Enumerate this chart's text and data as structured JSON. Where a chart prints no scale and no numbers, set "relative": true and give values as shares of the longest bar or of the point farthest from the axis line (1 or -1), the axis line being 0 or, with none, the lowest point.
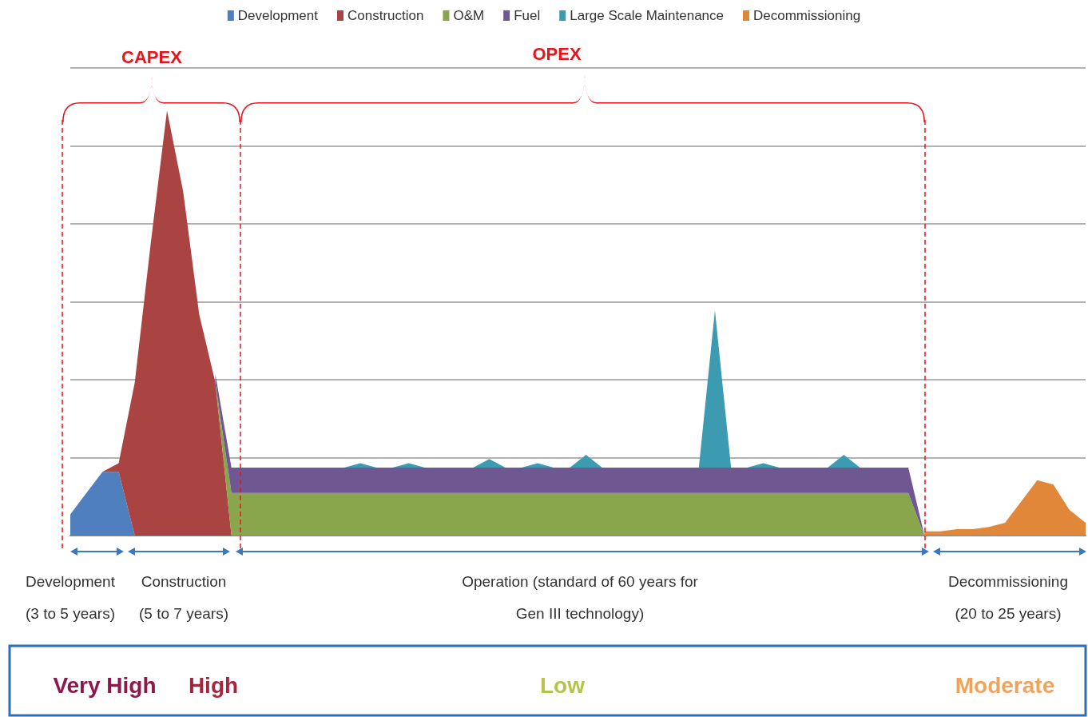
{
  "chart_data": {
    "type": "area",
    "stacked": true,
    "relative": true,
    "grid": "y",
    "legend": "top",
    "categories": [
      null,
      null,
      null,
      null,
      null,
      null,
      null,
      null,
      null,
      null,
      null,
      null,
      null,
      null,
      null,
      null,
      null,
      null,
      null,
      null,
      null,
      null,
      null,
      null,
      null,
      null,
      null,
      null,
      null,
      null,
      null,
      null,
      null,
      null,
      null,
      null,
      null,
      null,
      null,
      null,
      null,
      null,
      null,
      null,
      null,
      null,
      null,
      null,
      null,
      null,
      null,
      null,
      null,
      null,
      null,
      null,
      null,
      null,
      null,
      null,
      null,
      null,
      null,
      null
    ],
    "series": [
      {
        "name": "Development",
        "color": "#4f7fbf",
        "values": [
          0.05,
          0.1,
          0.15,
          0.15,
          0,
          null,
          null,
          null,
          null,
          null,
          null,
          null,
          null,
          null,
          null,
          null,
          null,
          null,
          null,
          null,
          null,
          null,
          null,
          null,
          null,
          null,
          null,
          null,
          null,
          null,
          null,
          null,
          null,
          null,
          null,
          null,
          null,
          null,
          null,
          null,
          null,
          null,
          null,
          null,
          null,
          null,
          null,
          null,
          null,
          null,
          null,
          null,
          null,
          null,
          null,
          null,
          null,
          null,
          null,
          null,
          null,
          null,
          null,
          null
        ]
      },
      {
        "name": "Construction",
        "color": "#a94442",
        "values": [
          null,
          null,
          0,
          0.02,
          0.36,
          0.69,
          1,
          0.81,
          0.52,
          0.36,
          0,
          null,
          null,
          null,
          null,
          null,
          null,
          null,
          null,
          null,
          null,
          null,
          null,
          null,
          null,
          null,
          null,
          null,
          null,
          null,
          null,
          null,
          null,
          null,
          null,
          null,
          null,
          null,
          null,
          null,
          null,
          null,
          null,
          null,
          null,
          null,
          null,
          null,
          null,
          null,
          null,
          null,
          null,
          null,
          null,
          null,
          null,
          null,
          null,
          null,
          null,
          null,
          null,
          null
        ]
      },
      {
        "name": "O&M",
        "color": "#8aa64c",
        "values": [
          null,
          null,
          null,
          null,
          null,
          null,
          null,
          null,
          null,
          0,
          0.1,
          0.1,
          0.1,
          0.1,
          0.1,
          0.1,
          0.1,
          0.1,
          0.1,
          0.1,
          0.1,
          0.1,
          0.1,
          0.1,
          0.1,
          0.1,
          0.1,
          0.1,
          0.1,
          0.1,
          0.1,
          0.1,
          0.1,
          0.1,
          0.1,
          0.1,
          0.1,
          0.1,
          0.1,
          0.1,
          0.1,
          0.1,
          0.1,
          0.1,
          0.1,
          0.1,
          0.1,
          0.1,
          0.1,
          0.1,
          0.1,
          0.1,
          0.1,
          0,
          null,
          null,
          null,
          null,
          null,
          null,
          null,
          null,
          null,
          null
        ]
      },
      {
        "name": "Fuel",
        "color": "#6f5791",
        "values": [
          null,
          null,
          null,
          null,
          null,
          null,
          null,
          null,
          null,
          0.02,
          0.06,
          0.06,
          0.06,
          0.06,
          0.06,
          0.06,
          0.06,
          0.06,
          0.06,
          0.06,
          0.06,
          0.06,
          0.06,
          0.06,
          0.06,
          0.06,
          0.06,
          0.06,
          0.06,
          0.06,
          0.06,
          0.06,
          0.06,
          0.06,
          0.06,
          0.06,
          0.06,
          0.06,
          0.06,
          0.06,
          0.06,
          0.06,
          0.06,
          0.06,
          0.06,
          0.06,
          0.06,
          0.06,
          0.06,
          0.06,
          0.06,
          0.06,
          0.06,
          0,
          null,
          null,
          null,
          null,
          null,
          null,
          null,
          null,
          null,
          null
        ]
      },
      {
        "name": "Large Scale Maintenance",
        "color": "#3c9bb0",
        "values": [
          null,
          null,
          null,
          null,
          null,
          null,
          null,
          null,
          null,
          null,
          0,
          0,
          0,
          0,
          0,
          0,
          0,
          0,
          0.01,
          0,
          0,
          0.01,
          0,
          0,
          0,
          0,
          0.02,
          0,
          0,
          0.01,
          0,
          0,
          0.03,
          0,
          0,
          0,
          0,
          0,
          0,
          0,
          0.37,
          0,
          0,
          0.01,
          0,
          0,
          0,
          0,
          0.03,
          0,
          0,
          0,
          0,
          null,
          null,
          null,
          null,
          null,
          null,
          null,
          null,
          null,
          null,
          null
        ]
      },
      {
        "name": "Decommissioning",
        "color": "#e0873a",
        "values": [
          null,
          null,
          null,
          null,
          null,
          null,
          null,
          null,
          null,
          null,
          null,
          null,
          null,
          null,
          null,
          null,
          null,
          null,
          null,
          null,
          null,
          null,
          null,
          null,
          null,
          null,
          null,
          null,
          null,
          null,
          null,
          null,
          null,
          null,
          null,
          null,
          null,
          null,
          null,
          null,
          null,
          null,
          null,
          null,
          null,
          null,
          null,
          null,
          null,
          null,
          null,
          null,
          null,
          0.01,
          0.01,
          0.015,
          0.015,
          0.02,
          0.03,
          0.08,
          0.13,
          0.12,
          0.06,
          0.03
        ]
      }
    ],
    "annotations": [
      "CAPEX",
      "OPEX",
      "Development\n(3 to 5 years)",
      "Construction\n(5 to 7 years)",
      "Operation (standard of 60 years for\nGen III technology)",
      "Decommissioning\n(20 to 25 years)",
      "Very High",
      "High",
      "Low",
      "Moderate"
    ]
  }
}
